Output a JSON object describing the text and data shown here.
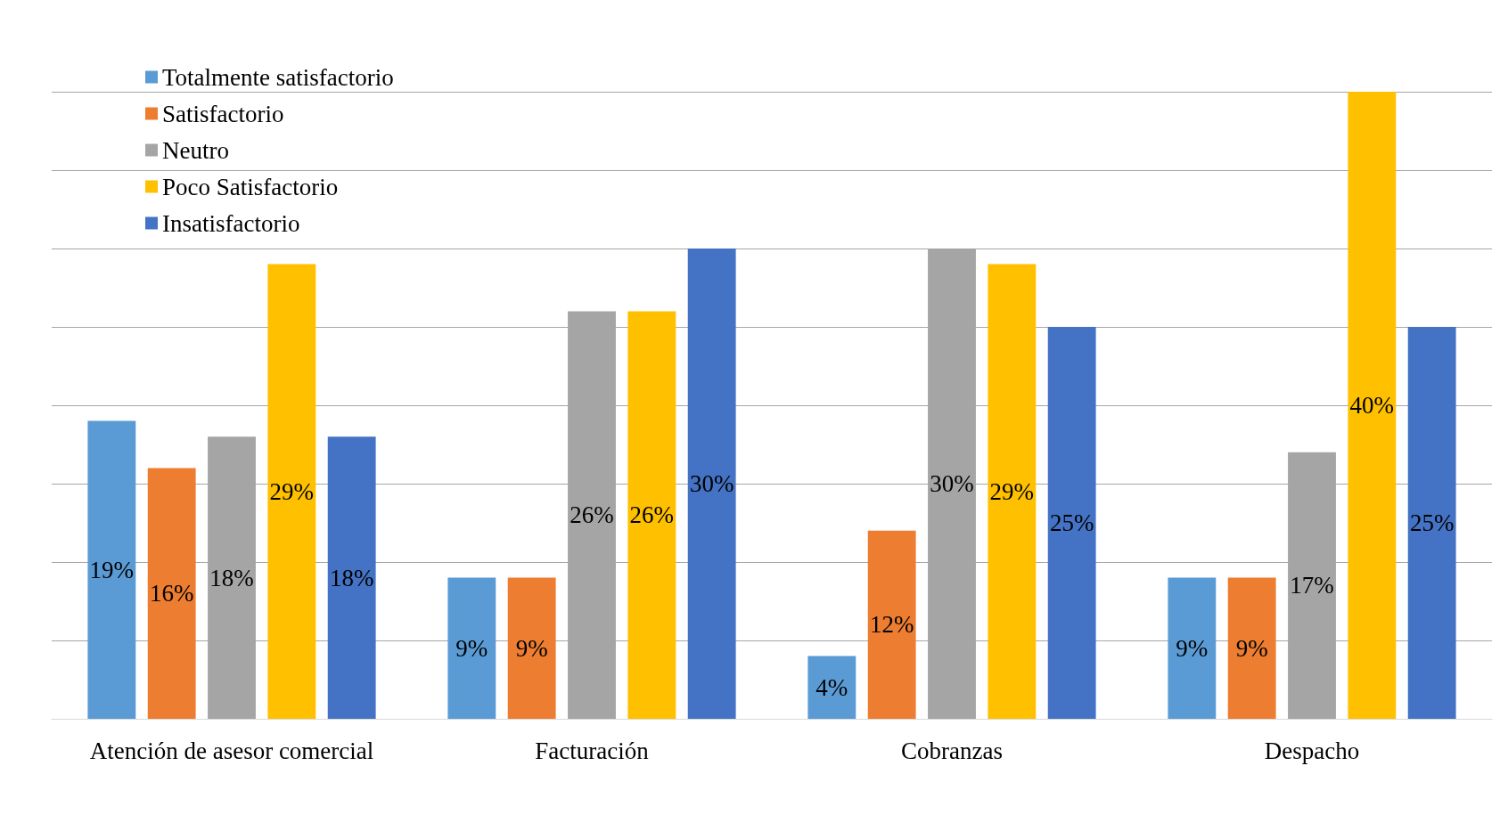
{
  "chart_data": {
    "type": "bar",
    "categories": [
      "Atención de asesor comercial",
      "Facturación",
      "Cobranzas",
      "Despacho"
    ],
    "series": [
      {
        "name": "Totalmente satisfactorio",
        "color": "#5b9bd5",
        "values": [
          19,
          9,
          4,
          9
        ],
        "value_labels": [
          "19%",
          "9%",
          "4%",
          "9%"
        ]
      },
      {
        "name": "Satisfactorio",
        "color": "#ed7d31",
        "values": [
          16,
          9,
          12,
          9
        ],
        "value_labels": [
          "16%",
          "9%",
          "12%",
          "9%"
        ]
      },
      {
        "name": "Neutro",
        "color": "#a5a5a5",
        "values": [
          18,
          26,
          30,
          17
        ],
        "value_labels": [
          "18%",
          "26%",
          "30%",
          "17%"
        ]
      },
      {
        "name": "Poco Satisfactorio",
        "color": "#ffc000",
        "values": [
          29,
          26,
          29,
          40
        ],
        "value_labels": [
          "29%",
          "26%",
          "29%",
          "40%"
        ]
      },
      {
        "name": "Insatisfactorio",
        "color": "#4472c4",
        "values": [
          18,
          30,
          25,
          25
        ],
        "value_labels": [
          "18%",
          "30%",
          "25%",
          "25%"
        ]
      }
    ],
    "tick_labels": "x",
    "grid": "y",
    "legend": "top left"
  }
}
